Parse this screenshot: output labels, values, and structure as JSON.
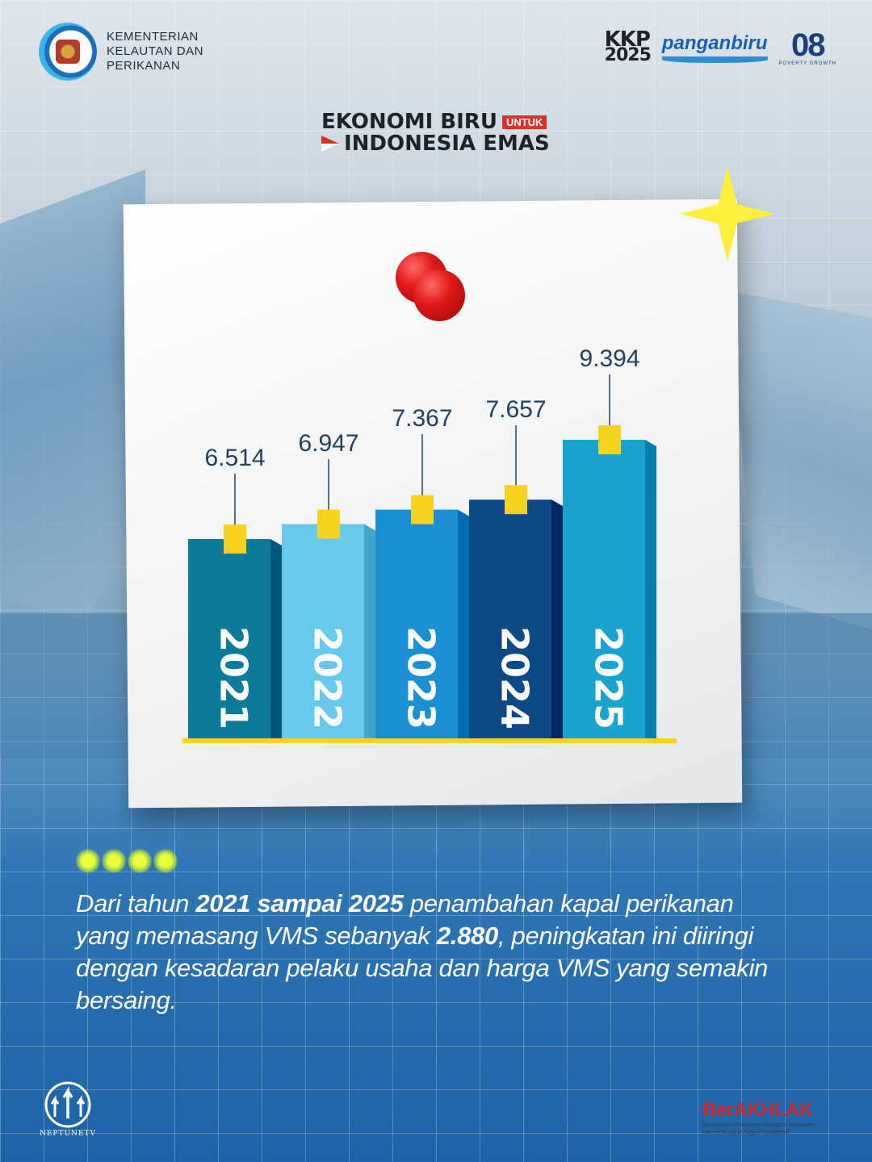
{
  "header": {
    "ministry_lines": [
      "KEMENTERIAN",
      "KELAUTAN DAN",
      "PERIKANAN"
    ],
    "partner_kkp": [
      "KKP",
      "2025"
    ],
    "partner_pangan": "panganbiru",
    "partner_asta": "08",
    "partner_asta_sub": "POVERTY  GROWTH"
  },
  "theme": {
    "line1": "EKONOMI BIRU",
    "tag": "UNTUK",
    "line2": "INDONESIA EMAS"
  },
  "colors": {
    "bar_2021": "#0d7a9a",
    "bar_2022": "#67c8ee",
    "bar_2023": "#1a8fd4",
    "bar_2024": "#0c4a86",
    "bar_2025": "#1aa3cf",
    "accent_yellow": "#f5d31f",
    "label_text": "#24405e"
  },
  "chart_data": {
    "type": "bar",
    "categories": [
      "2021",
      "2022",
      "2023",
      "2024",
      "2025"
    ],
    "values": [
      6514,
      6947,
      7367,
      7657,
      9394
    ],
    "value_labels": [
      "6.514",
      "6.947",
      "7.367",
      "7.657",
      "9.394"
    ],
    "title": "",
    "xlabel": "",
    "ylabel": ""
  },
  "description": {
    "p1": "Dari tahun ",
    "b1": "2021 sampai 2025",
    "p2": " penambahan kapal perikanan yang memasang VMS sebanyak ",
    "b2": "2.880",
    "p3": ", peningkatan ini diiringi dengan kesadaran pelaku usaha dan harga VMS yang semakin bersaing."
  },
  "footer": {
    "neptune": "NEPTUNETV",
    "berakhlak_title": "BerAKHLAK",
    "berakhlak_sub": "Berorientasi Pelayanan Akuntabel Kompeten Harmonis Loyal Adaptif Kolaboratif"
  }
}
